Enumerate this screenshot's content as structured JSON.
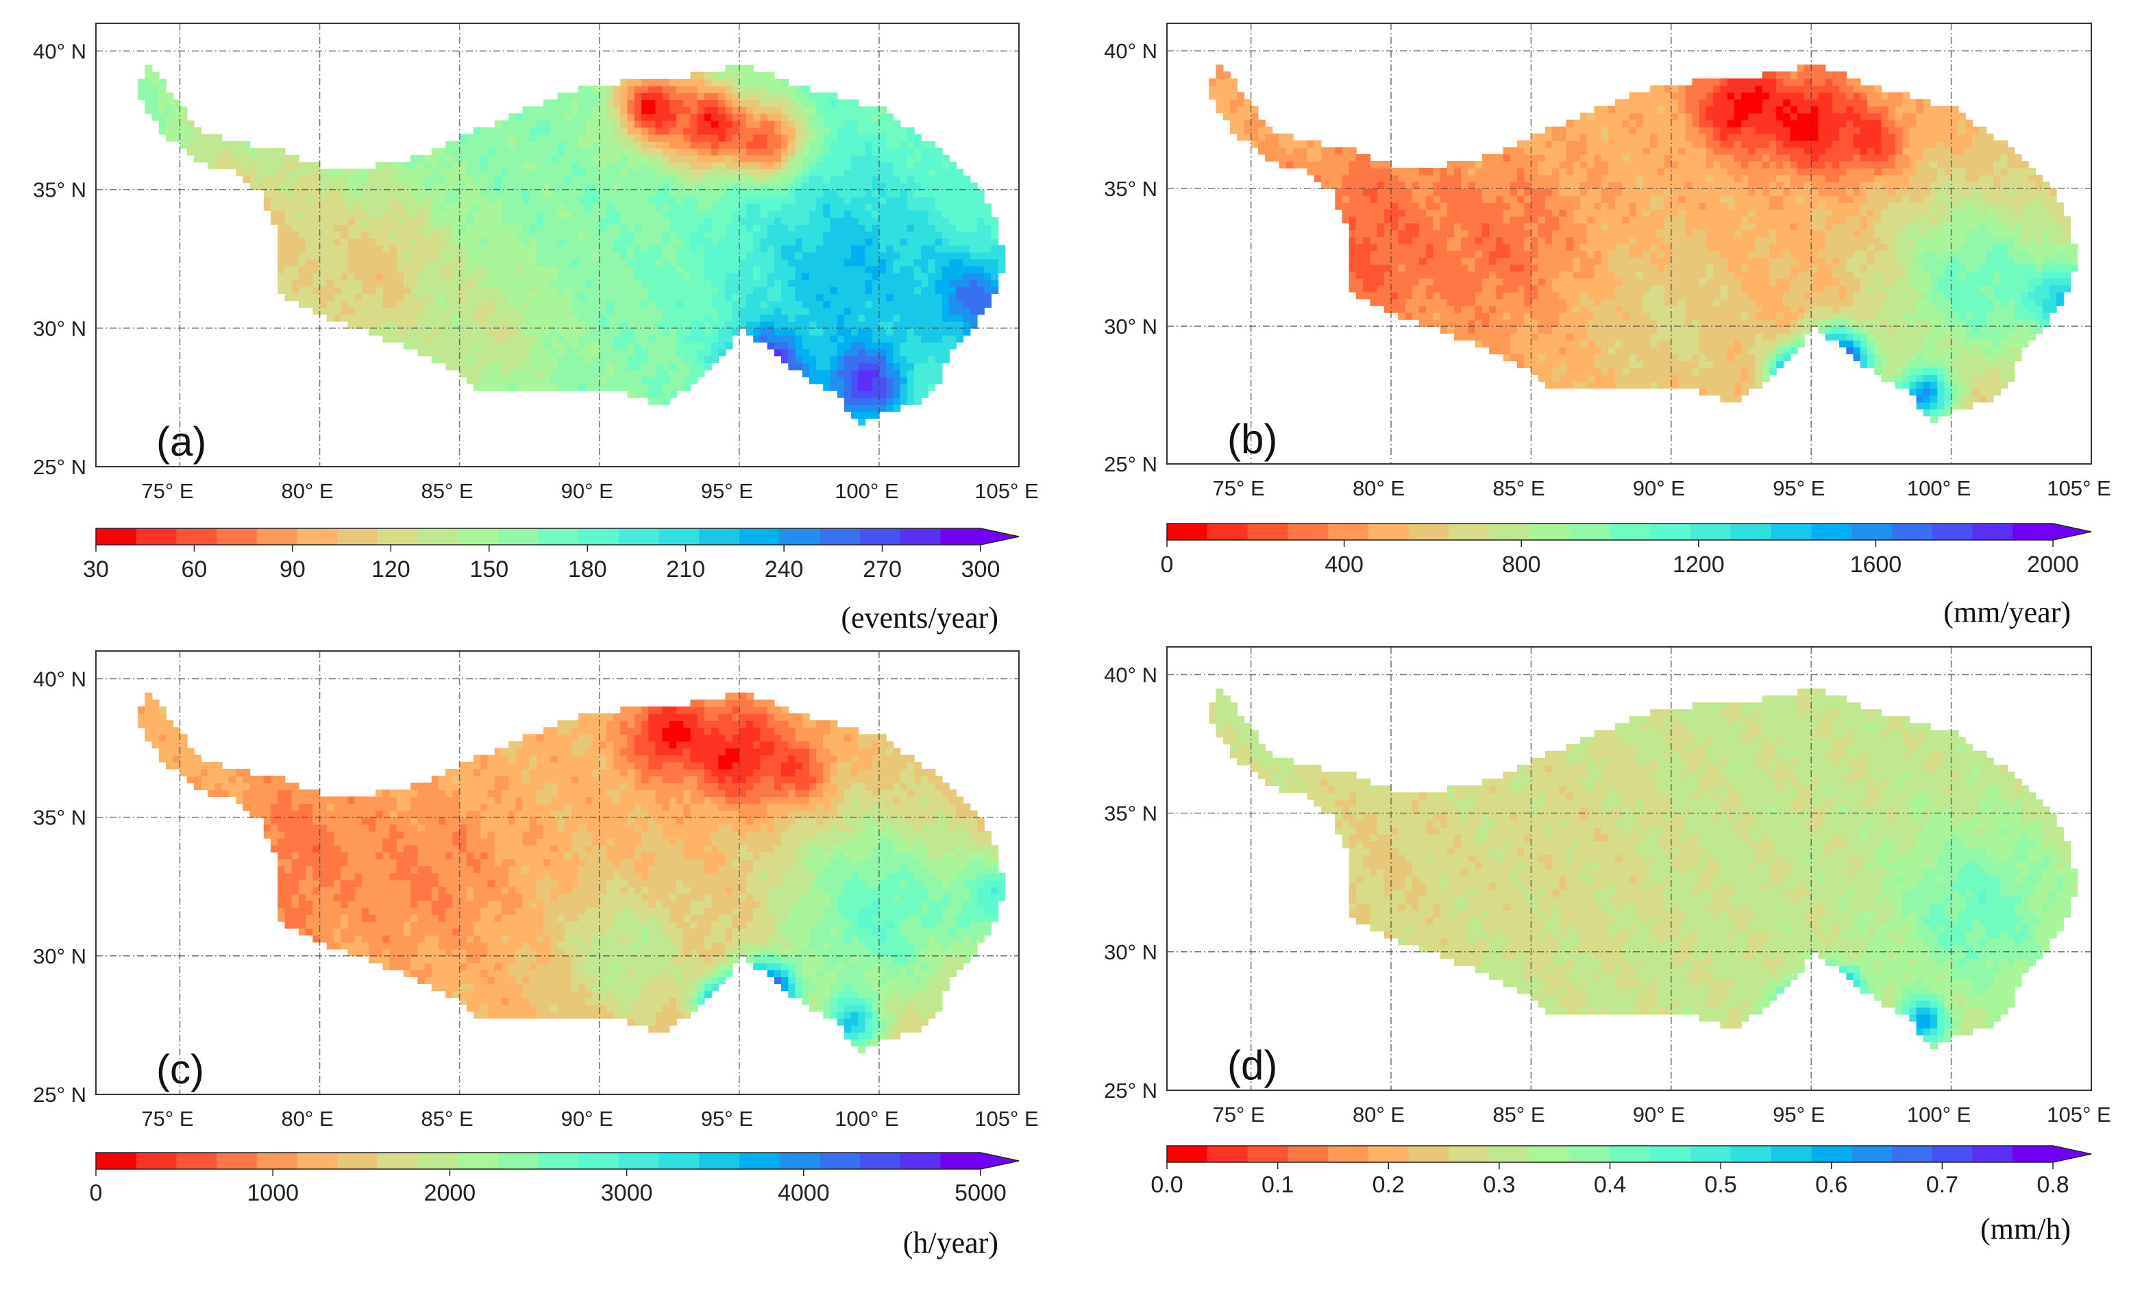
{
  "map_data": {
    "type": "heatmap",
    "region": "Tibetan Plateau",
    "lon_range": [
      72,
      105
    ],
    "lat_range": [
      25,
      41
    ],
    "lon_ticks": [
      75,
      80,
      85,
      90,
      95,
      100,
      105
    ],
    "lon_labels": [
      "75° E",
      "80° E",
      "85° E",
      "90° E",
      "95° E",
      "100° E",
      "105° E"
    ],
    "lat_ticks": [
      40,
      35,
      30,
      25
    ],
    "lat_labels": [
      "40° N",
      "35° N",
      "30° N",
      "25° N"
    ],
    "gridlines": true,
    "colormap": [
      "#ff0000",
      "#ff3322",
      "#ff5533",
      "#ff7744",
      "#ff9955",
      "#ffb366",
      "#e8c878",
      "#d8dc88",
      "#c0e890",
      "#a8f59a",
      "#90f8a8",
      "#70fcc0",
      "#5cf8d0",
      "#48ecd8",
      "#30e0e0",
      "#18c8e8",
      "#00b0f0",
      "#2090f0",
      "#3870f0",
      "#4850f8",
      "#5a30f8",
      "#7000f8"
    ],
    "outline_lonlat": [
      [
        73.9,
        39.5
      ],
      [
        75.0,
        38.1
      ],
      [
        75.7,
        37.1
      ],
      [
        77.2,
        36.7
      ],
      [
        78.6,
        36.4
      ],
      [
        80.4,
        35.7
      ],
      [
        81.6,
        35.8
      ],
      [
        83.3,
        36.1
      ],
      [
        85.3,
        37.0
      ],
      [
        87.3,
        37.9
      ],
      [
        89.7,
        38.8
      ],
      [
        92.7,
        39.0
      ],
      [
        95.2,
        39.5
      ],
      [
        97.6,
        38.6
      ],
      [
        100.1,
        37.9
      ],
      [
        102.0,
        36.6
      ],
      [
        103.3,
        35.4
      ],
      [
        104.0,
        34.4
      ],
      [
        104.5,
        32.7
      ],
      [
        104.3,
        31.4
      ],
      [
        103.5,
        30.2
      ],
      [
        102.5,
        29.0
      ],
      [
        102.0,
        27.7
      ],
      [
        101.1,
        27.2
      ],
      [
        100.1,
        27.0
      ],
      [
        99.3,
        26.5
      ],
      [
        98.6,
        27.5
      ],
      [
        97.4,
        28.2
      ],
      [
        96.1,
        29.2
      ],
      [
        95.2,
        30.0
      ],
      [
        94.2,
        28.9
      ],
      [
        93.2,
        27.9
      ],
      [
        92.2,
        27.2
      ],
      [
        90.7,
        27.7
      ],
      [
        88.3,
        27.7
      ],
      [
        85.8,
        27.7
      ],
      [
        84.8,
        28.5
      ],
      [
        83.3,
        29.2
      ],
      [
        81.4,
        30.0
      ],
      [
        79.9,
        30.5
      ],
      [
        78.6,
        31.2
      ],
      [
        78.6,
        32.2
      ],
      [
        78.4,
        33.7
      ],
      [
        77.9,
        34.9
      ],
      [
        76.9,
        35.7
      ],
      [
        75.9,
        35.9
      ],
      [
        74.5,
        36.9
      ],
      [
        73.5,
        38.4
      ],
      [
        73.7,
        39.4
      ]
    ],
    "panels": [
      {
        "label": "(a)",
        "unit": "(events/year)",
        "min": 30,
        "max": 300,
        "cb_ticks": [
          "30",
          "60",
          "90",
          "120",
          "150",
          "180",
          "210",
          "240",
          "270",
          "300"
        ],
        "base": 160,
        "hotspots": [
          [
            77,
            33,
            105,
            4
          ],
          [
            82,
            32,
            110,
            3
          ],
          [
            86,
            30,
            130,
            2.5
          ],
          [
            99,
            32,
            225,
            4.5
          ],
          [
            103.5,
            31,
            255,
            1.8
          ],
          [
            96,
            28.6,
            290,
            1.4
          ],
          [
            99.5,
            28,
            280,
            1.5
          ],
          [
            92,
            38,
            40,
            1.4
          ],
          [
            94,
            37.3,
            40,
            1.5
          ],
          [
            96,
            36.8,
            60,
            1.3
          ]
        ]
      },
      {
        "label": "(b)",
        "unit": "(mm/year)",
        "min": 0,
        "max": 2000,
        "cb_ticks": [
          "0",
          "400",
          "800",
          "1200",
          "1600",
          "2000"
        ],
        "base": 500,
        "hotspots": [
          [
            79,
            33,
            250,
            3.5
          ],
          [
            84,
            33,
            300,
            3
          ],
          [
            90,
            30,
            650,
            3
          ],
          [
            101,
            31.5,
            1050,
            3.5
          ],
          [
            104,
            31,
            1400,
            1.3
          ],
          [
            92.5,
            38,
            30,
            1.6
          ],
          [
            95,
            37.4,
            30,
            1.7
          ],
          [
            97,
            36.8,
            150,
            1.3
          ],
          [
            96,
            28.7,
            1900,
            1.2
          ],
          [
            94.5,
            28.2,
            1700,
            1
          ],
          [
            99,
            27.5,
            1600,
            1
          ]
        ]
      },
      {
        "label": "(c)",
        "unit": "(h/year)",
        "min": 0,
        "max": 5000,
        "cb_ticks": [
          "0",
          "1000",
          "2000",
          "3000",
          "4000",
          "5000"
        ],
        "base": 1300,
        "hotspots": [
          [
            79,
            33.5,
            800,
            3.5
          ],
          [
            84,
            33,
            900,
            3
          ],
          [
            91,
            30,
            2000,
            2.5
          ],
          [
            100,
            31.5,
            2700,
            3.8
          ],
          [
            104,
            32,
            2900,
            1.5
          ],
          [
            92.5,
            38,
            150,
            1.5
          ],
          [
            95,
            37.3,
            150,
            1.7
          ],
          [
            97,
            36.8,
            500,
            1.3
          ],
          [
            96,
            28.7,
            4800,
            1.1
          ],
          [
            94.5,
            28.3,
            4500,
            0.9
          ],
          [
            99,
            27.6,
            3500,
            1
          ]
        ]
      },
      {
        "label": "(d)",
        "unit": "(mm/h)",
        "min": 0,
        "max": 0.8,
        "cb_ticks": [
          "0.0",
          "0.1",
          "0.2",
          "0.3",
          "0.4",
          "0.5",
          "0.6",
          "0.7",
          "0.8"
        ],
        "base": 0.3,
        "hotspots": [
          [
            79,
            33,
            0.25,
            4
          ],
          [
            86,
            34,
            0.27,
            4
          ],
          [
            101,
            31.5,
            0.42,
            3
          ],
          [
            96,
            28.6,
            0.75,
            0.8
          ],
          [
            94.5,
            28.2,
            0.65,
            0.7
          ],
          [
            99,
            27.5,
            0.6,
            0.8
          ],
          [
            83,
            28.2,
            0.45,
            0.8
          ]
        ]
      }
    ]
  }
}
